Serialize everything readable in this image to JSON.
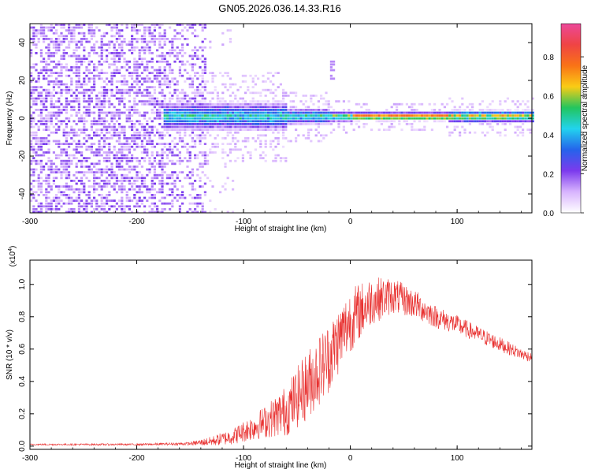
{
  "figure_title": "GN05.2026.036.14.33.R16",
  "chart_data": [
    {
      "type": "heatmap",
      "title": "GN05.2026.036.14.33.R16",
      "xlabel": "Height of straight line (km)",
      "ylabel": "Frequency (Hz)",
      "xlim": [
        -300,
        170
      ],
      "ylim": [
        -50,
        50
      ],
      "xticks": [
        -300,
        -200,
        -100,
        0,
        100
      ],
      "yticks": [
        -40,
        -20,
        0,
        20,
        40
      ],
      "colorbar": {
        "label": "Normalized spectral amplitude",
        "range": [
          0.0,
          0.97
        ],
        "ticks": [
          0.0,
          0.2,
          0.4,
          0.6,
          0.8
        ],
        "tick_labels": [
          "0.0",
          "0.2",
          "0.4",
          "0.6",
          "0.8"
        ],
        "colormap": [
          "#ffffff",
          "#d8b4fe",
          "#7c3aed",
          "#2563eb",
          "#22d3ee",
          "#22c55e",
          "#facc15",
          "#f97316",
          "#ef4444",
          "#ec4899"
        ]
      },
      "features": {
        "noise_region_x": [
          -300,
          -135
        ],
        "noise_level": 0.15,
        "band_center_hz": 1,
        "band_start_x": -175,
        "band_peak_x": [
          0,
          90
        ],
        "band_peak_level": 0.85,
        "faint_streak": {
          "x": [
            -20,
            -15
          ],
          "freq_hz": [
            20,
            30
          ]
        }
      }
    },
    {
      "type": "line",
      "xlabel": "Height of straight line (km)",
      "ylabel": "SNR (10 * v/v)",
      "y_multiplier_label": "(x10",
      "y_multiplier_exp": "4",
      "y_multiplier_close": ")",
      "xlim": [
        -300,
        170
      ],
      "ylim": [
        -0.02,
        1.15
      ],
      "xticks": [
        -300,
        -200,
        -100,
        0,
        100
      ],
      "yticks": [
        0.0,
        0.2,
        0.4,
        0.6,
        0.8,
        1.0
      ],
      "ytick_labels": [
        "0.0",
        "0.2",
        "0.4",
        "0.6",
        "0.8",
        "1.0"
      ],
      "series": [
        {
          "name": "SNR",
          "color": "#e8302f",
          "envelope_x": [
            -300,
            -200,
            -150,
            -130,
            -110,
            -80,
            -60,
            -40,
            -20,
            0,
            20,
            40,
            60,
            80,
            100,
            120,
            140,
            160,
            170
          ],
          "envelope_center": [
            0.01,
            0.01,
            0.015,
            0.03,
            0.06,
            0.15,
            0.22,
            0.38,
            0.55,
            0.78,
            0.9,
            0.93,
            0.88,
            0.8,
            0.75,
            0.69,
            0.63,
            0.57,
            0.55
          ],
          "envelope_spread": [
            0.005,
            0.006,
            0.01,
            0.03,
            0.05,
            0.1,
            0.16,
            0.22,
            0.22,
            0.2,
            0.15,
            0.11,
            0.09,
            0.07,
            0.06,
            0.05,
            0.045,
            0.035,
            0.03
          ]
        }
      ]
    }
  ]
}
